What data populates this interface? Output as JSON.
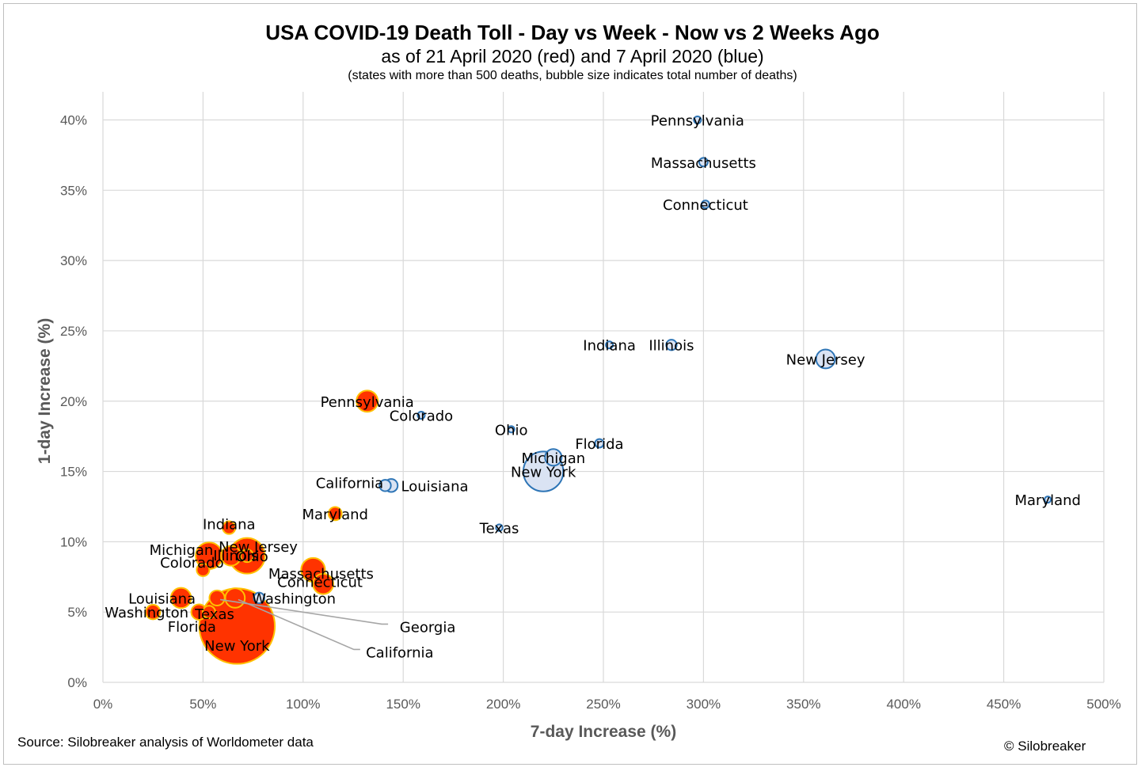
{
  "header": {
    "title": "USA COVID-19 Death Toll - Day vs Week - Now vs 2 Weeks Ago",
    "subtitle": "as of 21 April 2020 (red) and 7 April 2020 (blue)",
    "note": "(states with more than 500 deaths, bubble size indicates total number of deaths)"
  },
  "footer": {
    "source": "Source: Silobreaker analysis of Worldometer data",
    "copyright": "© Silobreaker"
  },
  "chart_data": {
    "type": "scatter",
    "xlabel": "7-day Increase (%)",
    "ylabel": "1-day Increase (%)",
    "xlim": [
      0,
      500
    ],
    "ylim": [
      0,
      42
    ],
    "x_ticks": [
      0,
      50,
      100,
      150,
      200,
      250,
      300,
      350,
      400,
      450,
      500
    ],
    "x_tick_labels": [
      "0%",
      "50%",
      "100%",
      "150%",
      "200%",
      "250%",
      "300%",
      "350%",
      "400%",
      "450%",
      "500%"
    ],
    "y_ticks": [
      0,
      5,
      10,
      15,
      20,
      25,
      30,
      35,
      40
    ],
    "y_tick_labels": [
      "0%",
      "5%",
      "10%",
      "15%",
      "20%",
      "25%",
      "30%",
      "35%",
      "40%"
    ],
    "grid": true,
    "colors": {
      "red_fill": "#ff3300",
      "red_stroke": "#ffc000",
      "blue_fill": "#dae3f3",
      "blue_stroke": "#2e75b6",
      "grid": "#d9d9d9",
      "leader": "#a6a6a6"
    },
    "series": [
      {
        "period": "21 April 2020",
        "color": "red",
        "points": [
          {
            "label": "New York",
            "x": 67,
            "y": 4,
            "size": 19693
          },
          {
            "label": "New Jersey",
            "x": 72,
            "y": 9,
            "size": 4377
          },
          {
            "label": "Michigan",
            "x": 53,
            "y": 9,
            "size": 2468
          },
          {
            "label": "Massachusetts",
            "x": 105,
            "y": 8,
            "size": 1961
          },
          {
            "label": "Connecticut",
            "x": 110,
            "y": 7,
            "size": 1423
          },
          {
            "label": "Illinois",
            "x": 64,
            "y": 9,
            "size": 1350
          },
          {
            "label": "Pennsylvania",
            "x": 132,
            "y": 20,
            "size": 1564
          },
          {
            "label": "Louisiana",
            "x": 39,
            "y": 6,
            "size": 1405
          },
          {
            "label": "California",
            "x": 66,
            "y": 6,
            "size": 1320
          },
          {
            "label": "Florida",
            "x": 48,
            "y": 5,
            "size": 822
          },
          {
            "label": "Washington",
            "x": 25,
            "y": 5,
            "size": 721
          },
          {
            "label": "Maryland",
            "x": 116,
            "y": 12,
            "size": 609
          },
          {
            "label": "Georgia",
            "x": 57,
            "y": 6,
            "size": 799
          },
          {
            "label": "Indiana",
            "x": 63,
            "y": 11,
            "size": 562
          },
          {
            "label": "Ohio",
            "x": 72,
            "y": 9,
            "size": 557
          },
          {
            "label": "Colorado",
            "x": 50,
            "y": 8,
            "size": 552
          },
          {
            "label": "Texas",
            "x": 53,
            "y": 5,
            "size": 543
          }
        ]
      },
      {
        "period": "7 April 2020",
        "color": "blue",
        "points": [
          {
            "label": "New York",
            "x": 220,
            "y": 15,
            "size": 5489
          },
          {
            "label": "New Jersey",
            "x": 361,
            "y": 23,
            "size": 1232
          },
          {
            "label": "Michigan",
            "x": 225,
            "y": 16,
            "size": 959
          },
          {
            "label": "Louisiana",
            "x": 144,
            "y": 14,
            "size": 582
          },
          {
            "label": "California",
            "x": 141,
            "y": 14,
            "size": 450
          },
          {
            "label": "Illinois",
            "x": 284,
            "y": 24,
            "size": 380
          },
          {
            "label": "Massachusetts",
            "x": 300,
            "y": 37,
            "size": 260
          },
          {
            "label": "Florida",
            "x": 248,
            "y": 17,
            "size": 254
          },
          {
            "label": "Connecticut",
            "x": 301,
            "y": 34,
            "size": 206
          },
          {
            "label": "Washington",
            "x": 78,
            "y": 6,
            "size": 394
          },
          {
            "label": "Pennsylvania",
            "x": 297,
            "y": 40,
            "size": 180
          },
          {
            "label": "Indiana",
            "x": 253,
            "y": 24,
            "size": 173
          },
          {
            "label": "Colorado",
            "x": 159,
            "y": 19,
            "size": 179
          },
          {
            "label": "Ohio",
            "x": 204,
            "y": 18,
            "size": 142
          },
          {
            "label": "Texas",
            "x": 198,
            "y": 11,
            "size": 154
          },
          {
            "label": "Maryland",
            "x": 472,
            "y": 13,
            "size": 103
          }
        ]
      }
    ]
  }
}
